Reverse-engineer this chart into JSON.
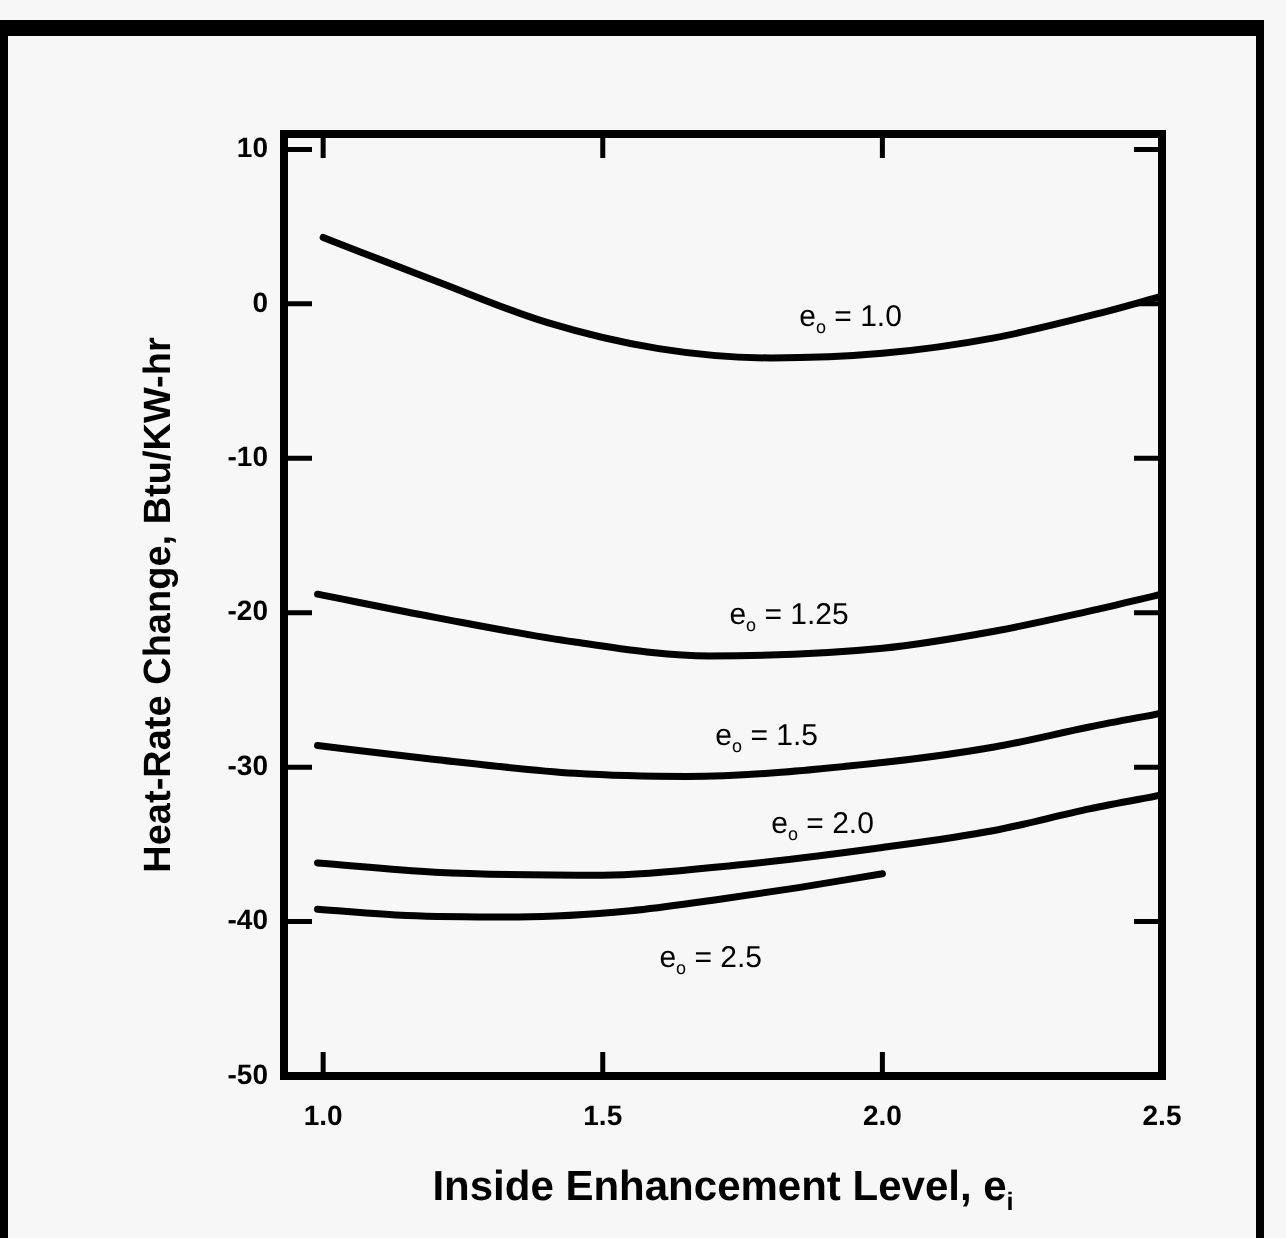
{
  "chart_data": {
    "type": "line",
    "xlabel": "Inside Enhancement Level, e$_{i}$",
    "ylabel": "Heat-Rate Change, Btu/KW-hr",
    "xlim": [
      0.93,
      2.5
    ],
    "xticks": [
      {
        "value": 1,
        "label": "1.0"
      },
      1.5,
      {
        "value": 2,
        "label": "2.0"
      },
      2.5
    ],
    "ylim": [
      -50,
      11
    ],
    "yticks": [
      -50,
      -40,
      -30,
      -20,
      -10,
      0,
      10
    ],
    "grid": false,
    "legend": false,
    "marker": "none",
    "line_style": "solid",
    "series": [
      {
        "name": "e$_{o}$ = 1.0",
        "color": "#000000",
        "x": [
          1.0,
          1.2,
          1.4,
          1.6,
          1.8,
          2.0,
          2.2,
          2.4,
          2.5
        ],
        "values": [
          4.3,
          1.5,
          -1.2,
          -2.9,
          -3.5,
          -3.2,
          -2.2,
          -0.5,
          0.5
        ]
      },
      {
        "name": "e$_{o}$ = 1.25",
        "color": "#000000",
        "x": [
          0.99,
          1.2,
          1.45,
          1.69,
          2.0,
          2.2,
          2.37,
          2.5
        ],
        "values": [
          -18.8,
          -20.3,
          -21.9,
          -22.8,
          -22.3,
          -21.2,
          -19.9,
          -18.8
        ]
      },
      {
        "name": "e$_{o}$ = 1.5",
        "color": "#000000",
        "x": [
          0.99,
          1.2,
          1.45,
          1.65,
          2.0,
          2.2,
          2.37,
          2.5
        ],
        "values": [
          -28.6,
          -29.5,
          -30.4,
          -30.6,
          -29.7,
          -28.7,
          -27.4,
          -26.5
        ]
      },
      {
        "name": "e$_{o}$ = 2.0",
        "color": "#000000",
        "x": [
          0.99,
          1.2,
          1.5,
          1.75,
          2.0,
          2.2,
          2.37,
          2.5
        ],
        "values": [
          -36.2,
          -36.8,
          -37.0,
          -36.3,
          -35.2,
          -34.1,
          -32.7,
          -31.8
        ]
      },
      {
        "name": "e$_{o}$ = 2.5",
        "color": "#000000",
        "x": [
          0.99,
          1.15,
          1.35,
          1.55,
          1.7,
          1.85,
          2.0
        ],
        "values": [
          -39.2,
          -39.6,
          -39.7,
          -39.3,
          -38.6,
          -37.8,
          -36.9
        ]
      }
    ]
  }
}
